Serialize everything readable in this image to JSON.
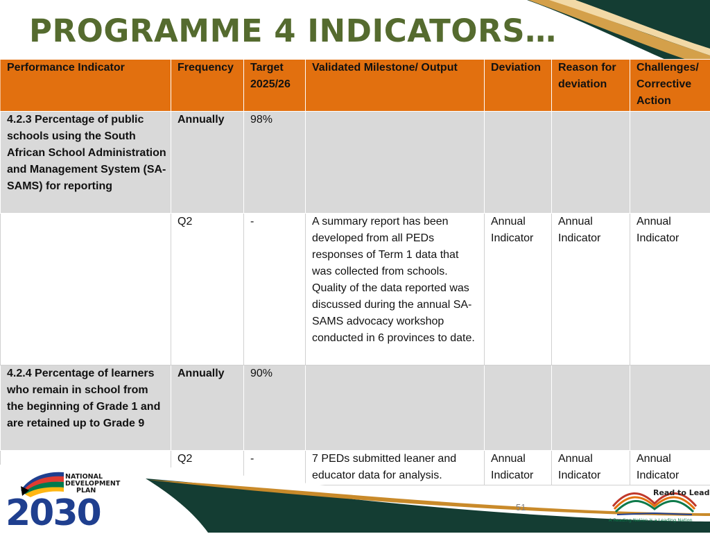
{
  "slide": {
    "title": "PROGRAMME 4 INDICATORS…",
    "page_number": "51"
  },
  "table": {
    "headers": {
      "indicator": "Performance Indicator",
      "frequency": "Frequency",
      "target": "Target 2025/26",
      "milestone": "Validated Milestone/ Output",
      "deviation": "Deviation",
      "reason": "Reason for deviation",
      "challenges": "Challenges/ Corrective Action"
    },
    "rows": [
      {
        "indicator": "4.2.3 Percentage of public schools using the South African School Administration and Management System (SA-SAMS) for reporting",
        "frequency": "Annually",
        "target": "98%",
        "quarter": "Q2",
        "quarter_target": "-",
        "milestone": "A summary report has been developed from all PEDs responses of Term 1 data that was collected from schools. Quality of the data reported was discussed during the annual SA-SAMS advocacy workshop conducted in 6 provinces to date.",
        "deviation": "Annual Indicator",
        "reason": "Annual Indicator",
        "challenges": "Annual Indicator"
      },
      {
        "indicator": "4.2.4 Percentage of learners who remain in school from the beginning of Grade 1 and are retained up to Grade 9",
        "frequency": "Annually",
        "target": "90%",
        "quarter": "Q2",
        "quarter_target": "-",
        "milestone": "7 PEDs submitted leaner and educator data for analysis.",
        "deviation": "Annual Indicator",
        "reason": "Annual Indicator",
        "challenges": "Annual Indicator"
      }
    ]
  },
  "logos": {
    "ndp_line1": "NATIONAL",
    "ndp_line2": "DEVELOPMENT",
    "ndp_line3": "PLAN",
    "ndp_year": "2030",
    "rtl_name": "Read to Lead",
    "rtl_tagline": "A Reading Nation is a Leading Nation"
  },
  "colors": {
    "header_orange": "#e2700f",
    "title_green": "#556b2f",
    "indicator_row_gray": "#d9d9d9",
    "dark_teal": "#143d33",
    "gold": "#c98a2a",
    "ndp_blue": "#1f3f8f"
  }
}
